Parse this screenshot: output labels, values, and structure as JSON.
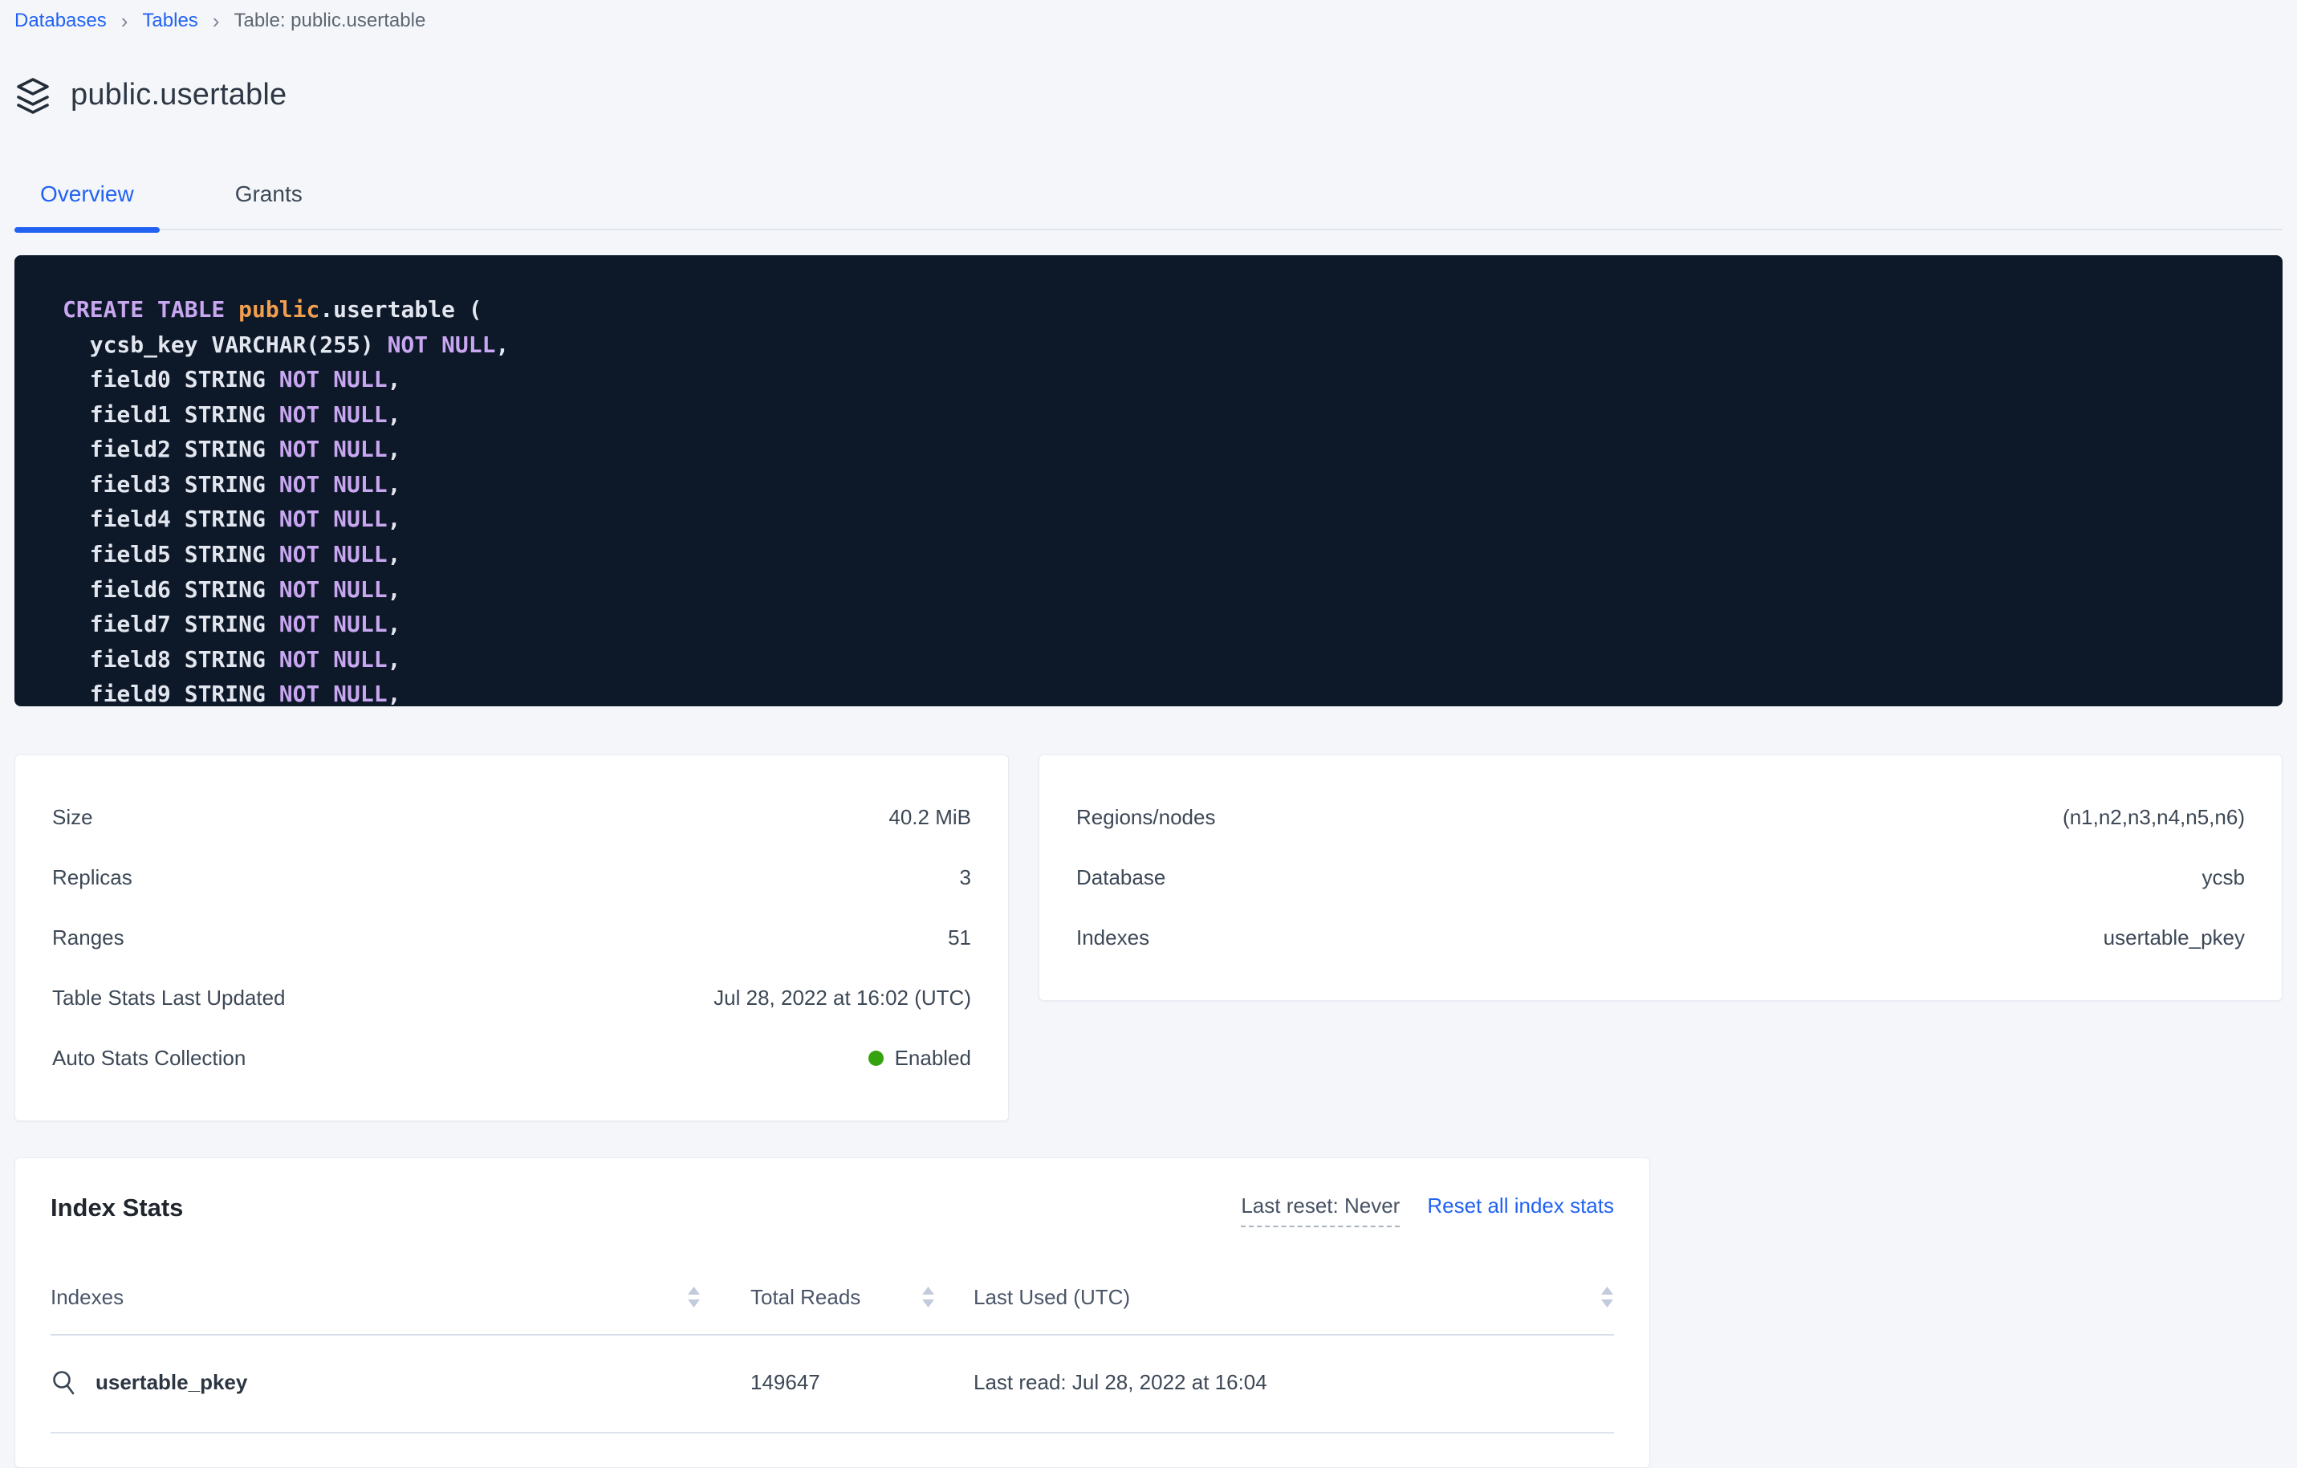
{
  "breadcrumb": {
    "separator": "›",
    "items": [
      {
        "label": "Databases",
        "link": true
      },
      {
        "label": "Tables",
        "link": true
      },
      {
        "label": "Table: public.usertable",
        "link": false
      }
    ]
  },
  "page": {
    "title": "public.usertable",
    "icon": "stack-icon"
  },
  "tabs": [
    {
      "label": "Overview",
      "active": true
    },
    {
      "label": "Grants",
      "active": false
    }
  ],
  "sql_code": {
    "lines": [
      {
        "tokens": [
          [
            "kw",
            "CREATE TABLE "
          ],
          [
            "ident",
            "public"
          ],
          [
            "plain",
            ".usertable ("
          ]
        ]
      },
      {
        "tokens": [
          [
            "plain",
            "  ycsb_key VARCHAR(255) "
          ],
          [
            "kw",
            "NOT NULL"
          ],
          [
            "plain",
            ","
          ]
        ]
      },
      {
        "tokens": [
          [
            "plain",
            "  field0 STRING "
          ],
          [
            "kw",
            "NOT NULL"
          ],
          [
            "plain",
            ","
          ]
        ]
      },
      {
        "tokens": [
          [
            "plain",
            "  field1 STRING "
          ],
          [
            "kw",
            "NOT NULL"
          ],
          [
            "plain",
            ","
          ]
        ]
      },
      {
        "tokens": [
          [
            "plain",
            "  field2 STRING "
          ],
          [
            "kw",
            "NOT NULL"
          ],
          [
            "plain",
            ","
          ]
        ]
      },
      {
        "tokens": [
          [
            "plain",
            "  field3 STRING "
          ],
          [
            "kw",
            "NOT NULL"
          ],
          [
            "plain",
            ","
          ]
        ]
      },
      {
        "tokens": [
          [
            "plain",
            "  field4 STRING "
          ],
          [
            "kw",
            "NOT NULL"
          ],
          [
            "plain",
            ","
          ]
        ]
      },
      {
        "tokens": [
          [
            "plain",
            "  field5 STRING "
          ],
          [
            "kw",
            "NOT NULL"
          ],
          [
            "plain",
            ","
          ]
        ]
      },
      {
        "tokens": [
          [
            "plain",
            "  field6 STRING "
          ],
          [
            "kw",
            "NOT NULL"
          ],
          [
            "plain",
            ","
          ]
        ]
      },
      {
        "tokens": [
          [
            "plain",
            "  field7 STRING "
          ],
          [
            "kw",
            "NOT NULL"
          ],
          [
            "plain",
            ","
          ]
        ]
      },
      {
        "tokens": [
          [
            "plain",
            "  field8 STRING "
          ],
          [
            "kw",
            "NOT NULL"
          ],
          [
            "plain",
            ","
          ]
        ]
      },
      {
        "tokens": [
          [
            "plain",
            "  field9 STRING "
          ],
          [
            "kw",
            "NOT NULL"
          ],
          [
            "plain",
            ","
          ]
        ]
      }
    ],
    "colors": {
      "background": "#0d1829",
      "keyword": "#c8a7f0",
      "identifier": "#f29e4f",
      "plain": "#e2e6ee"
    }
  },
  "details_left": {
    "rows": [
      {
        "label": "Size",
        "value": "40.2 MiB"
      },
      {
        "label": "Replicas",
        "value": "3"
      },
      {
        "label": "Ranges",
        "value": "51"
      },
      {
        "label": "Table Stats Last Updated",
        "value": "Jul 28, 2022 at 16:02 (UTC)"
      },
      {
        "label": "Auto Stats Collection",
        "value": "Enabled",
        "dot": true
      }
    ]
  },
  "details_right": {
    "rows": [
      {
        "label": "Regions/nodes",
        "value": "(n1,n2,n3,n4,n5,n6)"
      },
      {
        "label": "Database",
        "value": "ycsb"
      },
      {
        "label": "Indexes",
        "value": "usertable_pkey"
      }
    ]
  },
  "index_stats": {
    "title": "Index Stats",
    "last_reset": "Last reset: Never",
    "reset_link": "Reset all index stats",
    "columns": [
      "Indexes",
      "Total Reads",
      "Last Used (UTC)"
    ],
    "rows": [
      {
        "name": "usertable_pkey",
        "total_reads": "149647",
        "last_used": "Last read: Jul 28, 2022 at 16:04"
      }
    ]
  },
  "colors": {
    "accent_blue": "#2262f2",
    "status_green": "#35a20e",
    "page_background": "#f4f6fa"
  }
}
